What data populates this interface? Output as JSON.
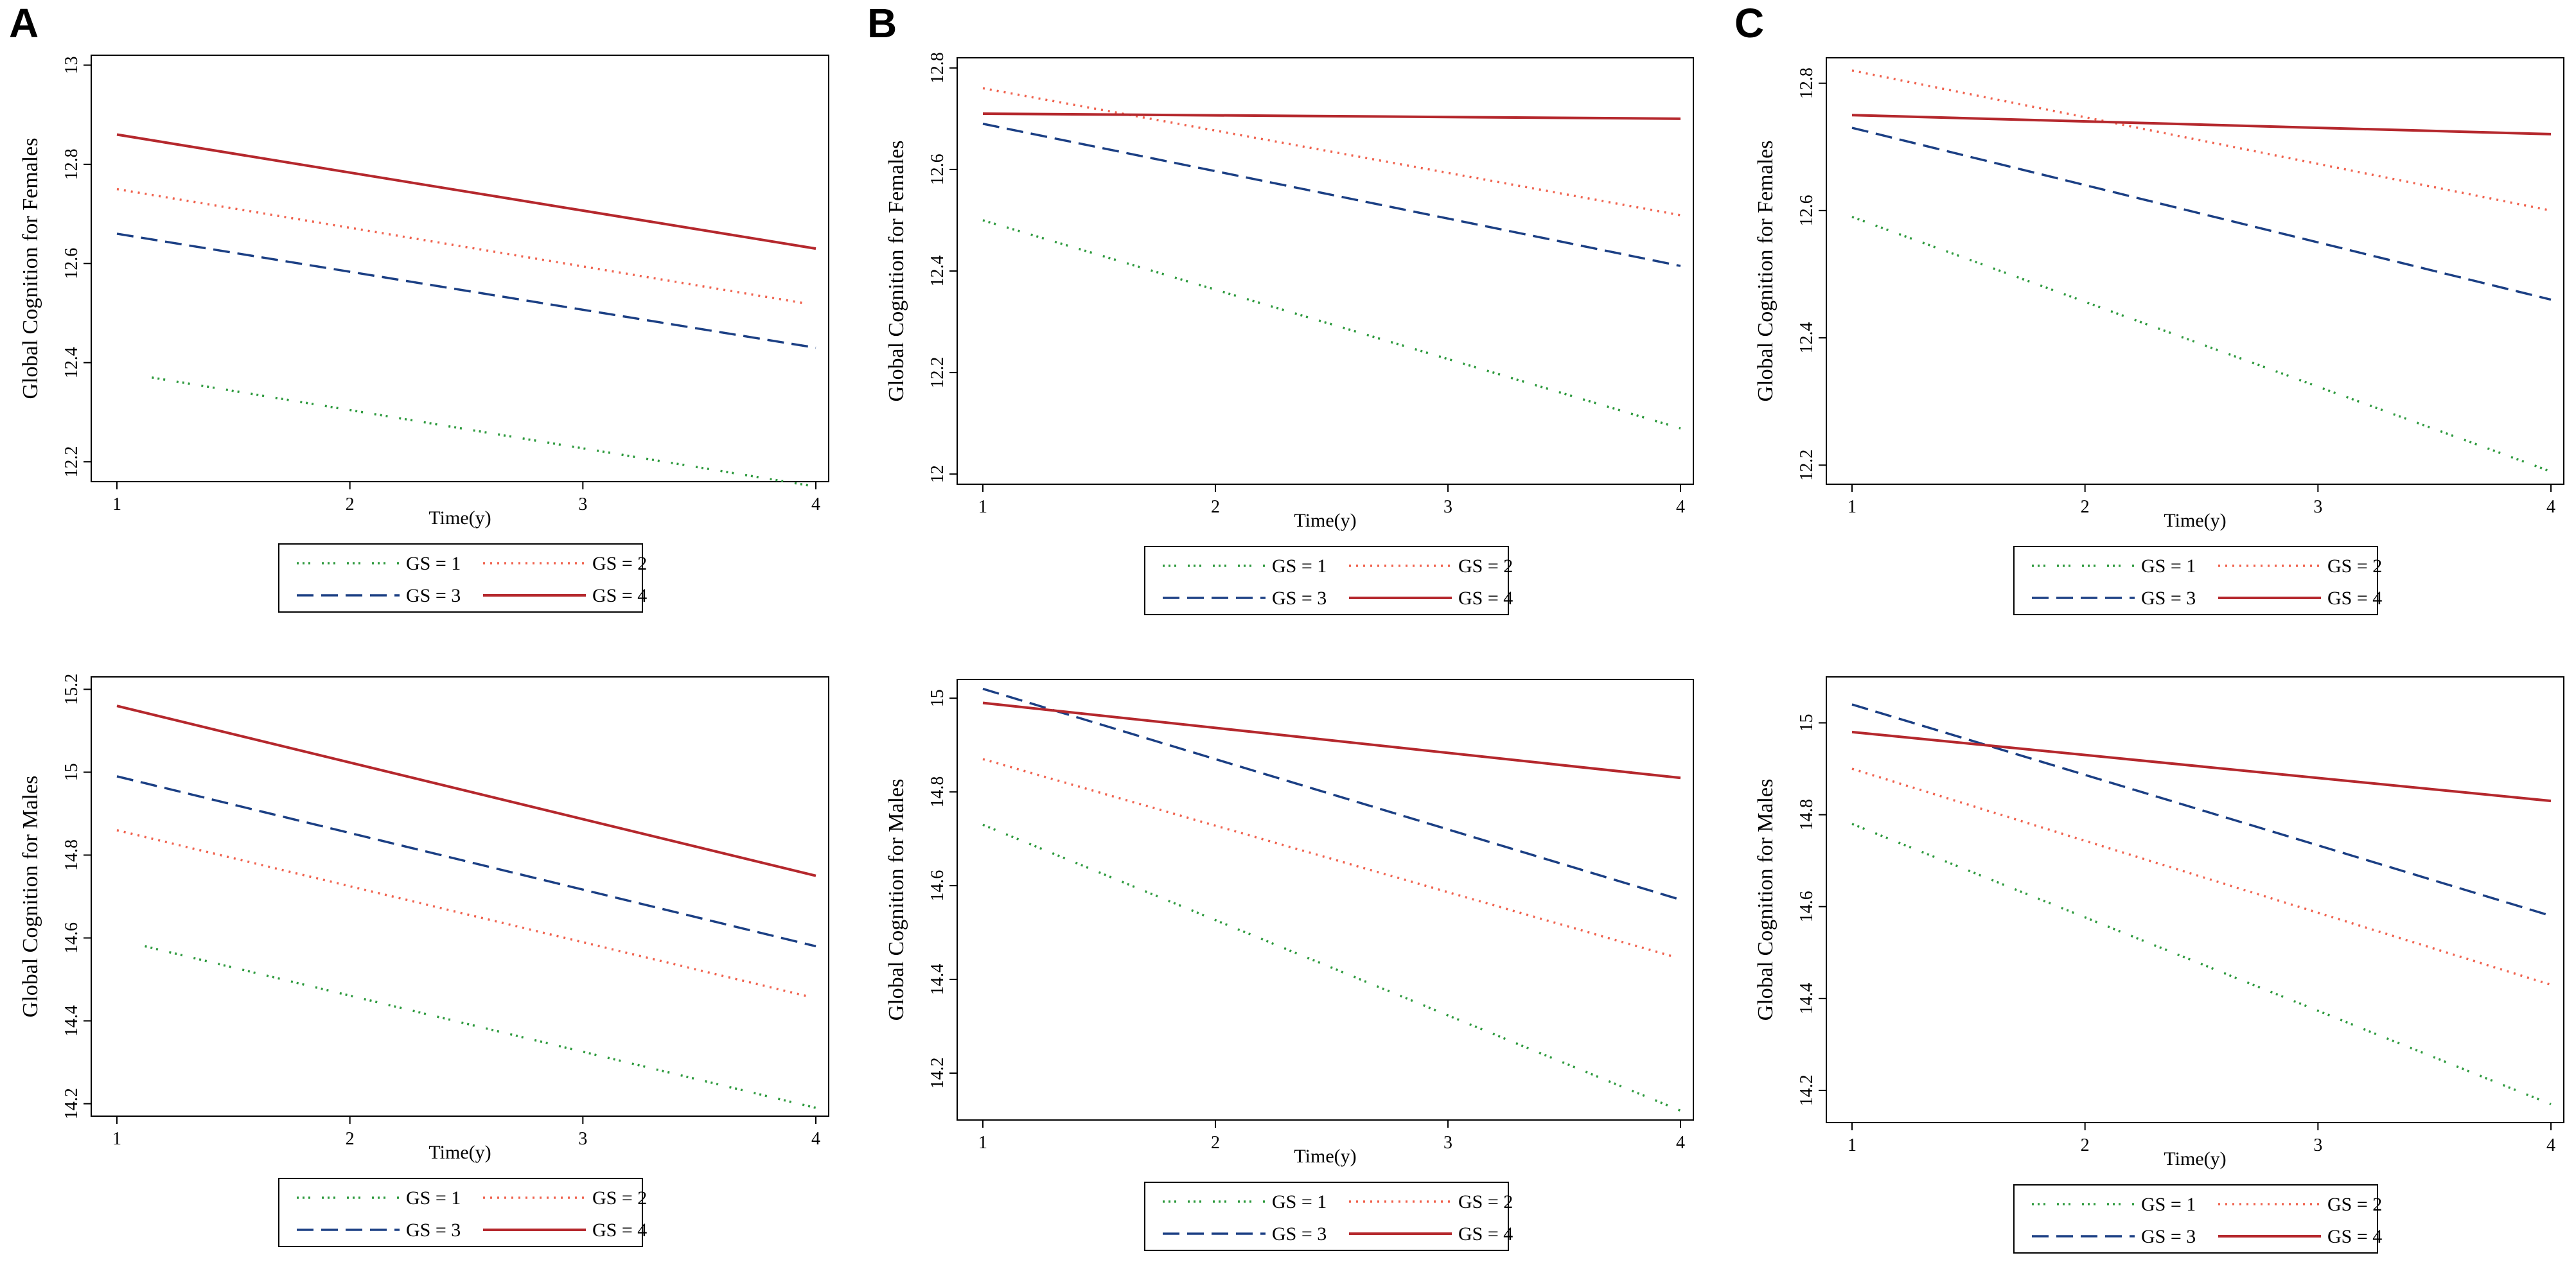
{
  "figure": {
    "panel_labels": [
      "A",
      "B",
      "C"
    ],
    "x_axis_title": "Time(y)",
    "legend_entries": [
      "GS = 1",
      "GS = 2",
      "GS = 3",
      "GS = 4"
    ]
  },
  "series_styles": [
    {
      "name": "GS = 1",
      "color": "#2e9a3e",
      "dash": "dotdash"
    },
    {
      "name": "GS = 2",
      "color": "#f0634f",
      "dash": "dotted"
    },
    {
      "name": "GS = 3",
      "color": "#1b3f84",
      "dash": "dashed"
    },
    {
      "name": "GS = 4",
      "color": "#b5282d",
      "dash": "solid"
    }
  ],
  "chart_data": [
    {
      "id": "A-females",
      "type": "line",
      "panel": "A",
      "xlabel": "Time(y)",
      "ylabel": "Global Cognition for Females",
      "x": [
        1,
        4
      ],
      "xticks": [
        "1",
        "2",
        "3",
        "4"
      ],
      "xlim": [
        1,
        4
      ],
      "ylim": [
        12.16,
        13.02
      ],
      "yticks": [
        "12.2",
        "12.4",
        "12.6",
        "12.8",
        "13"
      ],
      "series": [
        {
          "name": "GS = 1",
          "x": [
            1.15,
            4
          ],
          "values": [
            12.37,
            12.15
          ]
        },
        {
          "name": "GS = 2",
          "x": [
            1,
            3.95
          ],
          "values": [
            12.75,
            12.52
          ]
        },
        {
          "name": "GS = 3",
          "x": [
            1,
            4
          ],
          "values": [
            12.66,
            12.43
          ]
        },
        {
          "name": "GS = 4",
          "x": [
            1,
            4
          ],
          "values": [
            12.86,
            12.63
          ]
        }
      ]
    },
    {
      "id": "B-females",
      "type": "line",
      "panel": "B",
      "xlabel": "Time(y)",
      "ylabel": "Global Cognition for Females",
      "x": [
        1,
        4
      ],
      "xticks": [
        "1",
        "2",
        "3",
        "4"
      ],
      "xlim": [
        1,
        4
      ],
      "ylim": [
        11.98,
        12.82
      ],
      "yticks": [
        "12",
        "12.2",
        "12.4",
        "12.6",
        "12.8"
      ],
      "series": [
        {
          "name": "GS = 1",
          "x": [
            1,
            4
          ],
          "values": [
            12.5,
            12.09
          ]
        },
        {
          "name": "GS = 2",
          "x": [
            1,
            4
          ],
          "values": [
            12.76,
            12.51
          ]
        },
        {
          "name": "GS = 3",
          "x": [
            1,
            4
          ],
          "values": [
            12.69,
            12.41
          ]
        },
        {
          "name": "GS = 4",
          "x": [
            1,
            4
          ],
          "values": [
            12.71,
            12.7
          ]
        }
      ]
    },
    {
      "id": "C-females",
      "type": "line",
      "panel": "C",
      "xlabel": "Time(y)",
      "ylabel": "Global Cognition for Females",
      "x": [
        1,
        4
      ],
      "xticks": [
        "1",
        "2",
        "3",
        "4"
      ],
      "xlim": [
        1,
        4
      ],
      "ylim": [
        12.17,
        12.84
      ],
      "yticks": [
        "12.2",
        "12.4",
        "12.6",
        "12.8"
      ],
      "series": [
        {
          "name": "GS = 1",
          "x": [
            1,
            4
          ],
          "values": [
            12.59,
            12.19
          ]
        },
        {
          "name": "GS = 2",
          "x": [
            1,
            4
          ],
          "values": [
            12.82,
            12.6
          ]
        },
        {
          "name": "GS = 3",
          "x": [
            1,
            4
          ],
          "values": [
            12.73,
            12.46
          ]
        },
        {
          "name": "GS = 4",
          "x": [
            1,
            4
          ],
          "values": [
            12.75,
            12.72
          ]
        }
      ]
    },
    {
      "id": "A-males",
      "type": "line",
      "panel": "A",
      "xlabel": "Time(y)",
      "ylabel": "Global Cognition for Males",
      "x": [
        1,
        4
      ],
      "xticks": [
        "1",
        "2",
        "3",
        "4"
      ],
      "xlim": [
        1,
        4
      ],
      "ylim": [
        14.17,
        15.23
      ],
      "yticks": [
        "14.2",
        "14.4",
        "14.6",
        "14.8",
        "15",
        "15.2"
      ],
      "series": [
        {
          "name": "GS = 1",
          "x": [
            1.12,
            4
          ],
          "values": [
            14.58,
            14.19
          ]
        },
        {
          "name": "GS = 2",
          "x": [
            1,
            3.96
          ],
          "values": [
            14.86,
            14.46
          ]
        },
        {
          "name": "GS = 3",
          "x": [
            1,
            4
          ],
          "values": [
            14.99,
            14.58
          ]
        },
        {
          "name": "GS = 4",
          "x": [
            1,
            4
          ],
          "values": [
            15.16,
            14.75
          ]
        }
      ]
    },
    {
      "id": "B-males",
      "type": "line",
      "panel": "B",
      "xlabel": "Time(y)",
      "ylabel": "Global Cognition for Males",
      "x": [
        1,
        4
      ],
      "xticks": [
        "1",
        "2",
        "3",
        "4"
      ],
      "xlim": [
        1,
        4
      ],
      "ylim": [
        14.1,
        15.04
      ],
      "yticks": [
        "14.2",
        "14.4",
        "14.6",
        "14.8",
        "15"
      ],
      "series": [
        {
          "name": "GS = 1",
          "x": [
            1,
            4
          ],
          "values": [
            14.73,
            14.12
          ]
        },
        {
          "name": "GS = 2",
          "x": [
            1,
            3.96
          ],
          "values": [
            14.87,
            14.45
          ]
        },
        {
          "name": "GS = 3",
          "x": [
            1,
            4
          ],
          "values": [
            15.02,
            14.57
          ]
        },
        {
          "name": "GS = 4",
          "x": [
            1,
            4
          ],
          "values": [
            14.99,
            14.83
          ]
        }
      ]
    },
    {
      "id": "C-males",
      "type": "line",
      "panel": "C",
      "xlabel": "Time(y)",
      "ylabel": "Global Cognition for Males",
      "x": [
        1,
        4
      ],
      "xticks": [
        "1",
        "2",
        "3",
        "4"
      ],
      "xlim": [
        1,
        4
      ],
      "ylim": [
        14.13,
        15.1
      ],
      "yticks": [
        "14.2",
        "14.4",
        "14.6",
        "14.8",
        "15"
      ],
      "series": [
        {
          "name": "GS = 1",
          "x": [
            1,
            4
          ],
          "values": [
            14.78,
            14.17
          ]
        },
        {
          "name": "GS = 2",
          "x": [
            1,
            4
          ],
          "values": [
            14.9,
            14.43
          ]
        },
        {
          "name": "GS = 3",
          "x": [
            1,
            4
          ],
          "values": [
            15.04,
            14.58
          ]
        },
        {
          "name": "GS = 4",
          "x": [
            1,
            4
          ],
          "values": [
            14.98,
            14.83
          ]
        }
      ]
    }
  ]
}
